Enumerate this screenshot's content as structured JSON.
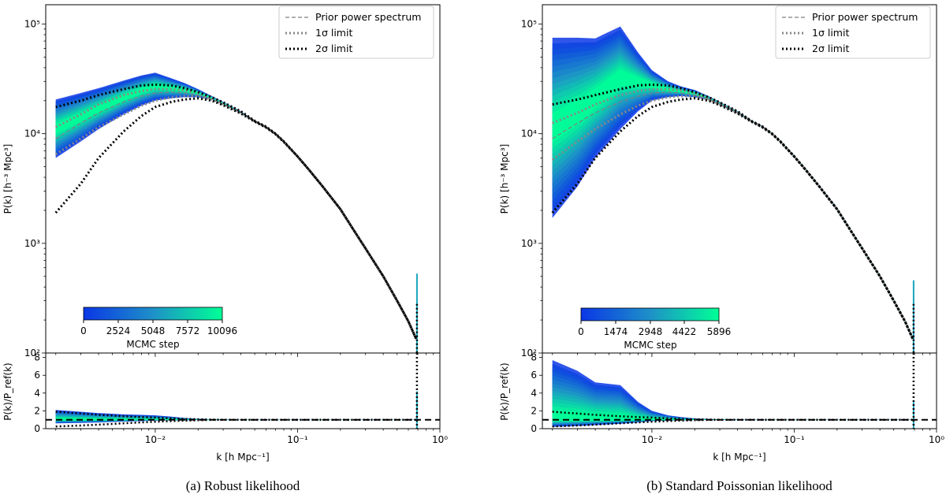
{
  "chart_data": [
    {
      "type": "line",
      "panel": "left",
      "caption": "(a) Robust likelihood",
      "xscale": "log",
      "yscale": "log",
      "xlim": [
        0.0017,
        1.0
      ],
      "ylim": [
        100,
        150000
      ],
      "ratio_ylim": [
        0,
        8.5
      ],
      "ylabel": "P(k) [h⁻³ Mpc³]",
      "ratio_ylabel": "P(k)/P_ref(k)",
      "xlabel": "k [h Mpc⁻¹]",
      "y_ticks": [
        {
          "v": 100,
          "label": "10²"
        },
        {
          "v": 1000,
          "label": "10³"
        },
        {
          "v": 10000,
          "label": "10⁴"
        },
        {
          "v": 100000,
          "label": "10⁵"
        }
      ],
      "ratio_ticks": [
        {
          "v": 0,
          "label": "0"
        },
        {
          "v": 2,
          "label": "2"
        },
        {
          "v": 4,
          "label": "4"
        },
        {
          "v": 6,
          "label": "6"
        },
        {
          "v": 8,
          "label": "8"
        }
      ],
      "x_ticks": [
        {
          "v": 0.01,
          "label": "10⁻²"
        },
        {
          "v": 0.1,
          "label": "10⁻¹"
        },
        {
          "v": 1,
          "label": "10⁰"
        }
      ],
      "legend": {
        "position": "top-right",
        "entries": [
          "Prior power spectrum",
          "1σ limit",
          "2σ limit"
        ]
      },
      "colorbar": {
        "label": "MCMC step",
        "ticks": [
          "0",
          "2524",
          "5048",
          "7572",
          "10096"
        ],
        "position": "bottom-left"
      },
      "k": [
        0.002,
        0.003,
        0.004,
        0.006,
        0.008,
        0.01,
        0.013,
        0.016,
        0.02,
        0.025,
        0.03,
        0.04,
        0.05,
        0.06,
        0.07,
        0.08,
        0.1,
        0.12,
        0.15,
        0.2,
        0.25,
        0.3,
        0.4,
        0.5,
        0.6,
        0.68
      ],
      "prior": [
        9000,
        12500,
        15500,
        19500,
        22000,
        23500,
        24000,
        23500,
        22500,
        20500,
        18500,
        15500,
        13000,
        11500,
        10000,
        8500,
        6200,
        4700,
        3300,
        2050,
        1300,
        900,
        500,
        300,
        195,
        135
      ],
      "sigma1_low": [
        6500,
        9000,
        11500,
        15000,
        18000,
        20000,
        21500,
        22000,
        22000,
        20500,
        18500,
        15500,
        13000,
        11500,
        10000,
        8500,
        6200,
        4700,
        3300,
        2050,
        1300,
        900,
        500,
        300,
        195,
        135
      ],
      "sigma1_high": [
        11500,
        15000,
        18500,
        22500,
        24500,
        25500,
        25500,
        24800,
        23500,
        21000,
        19000,
        15800,
        13000,
        11500,
        10000,
        8500,
        6200,
        4700,
        3300,
        2050,
        1300,
        900,
        500,
        300,
        195,
        135
      ],
      "sigma2_low": [
        1900,
        3500,
        6000,
        10500,
        14500,
        17500,
        19500,
        20500,
        21000,
        20000,
        18200,
        15300,
        12900,
        11400,
        9900,
        8400,
        6200,
        4700,
        3300,
        2050,
        1300,
        900,
        500,
        300,
        195,
        135
      ],
      "sigma2_high": [
        17500,
        20000,
        22500,
        25500,
        27500,
        28000,
        27500,
        26000,
        24000,
        21500,
        19300,
        16000,
        13100,
        11600,
        10000,
        8500,
        6200,
        4700,
        3300,
        2050,
        1300,
        900,
        500,
        300,
        195,
        135
      ],
      "band_low": [
        6000,
        8500,
        11000,
        15000,
        18000,
        20000,
        21000,
        21500,
        21500,
        20500,
        18500,
        15500,
        13000,
        11500,
        10000,
        8500,
        6200,
        4700,
        3300,
        2050,
        1300,
        900,
        500,
        300,
        195,
        135
      ],
      "band_high": [
        20500,
        23500,
        26000,
        30500,
        34000,
        36000,
        32000,
        29000,
        25500,
        22000,
        19500,
        16000,
        13200,
        11700,
        10100,
        8600,
        6300,
        4800,
        3350,
        2100,
        1330,
        920,
        510,
        305,
        200,
        140
      ],
      "ratio_band_low": [
        0.6,
        0.65,
        0.7,
        0.8,
        0.85,
        0.9,
        0.93,
        0.95,
        0.97,
        0.98,
        0.99,
        1,
        1,
        1,
        1,
        1,
        1,
        1,
        1,
        1,
        1,
        1,
        1,
        1,
        1,
        1
      ],
      "ratio_band_high": [
        2.1,
        1.9,
        1.75,
        1.6,
        1.55,
        1.5,
        1.35,
        1.2,
        1.1,
        1.05,
        1.03,
        1.02,
        1.02,
        1.02,
        1.02,
        1.02,
        1.02,
        1.02,
        1.02,
        1.02,
        1.02,
        1.02,
        1.02,
        1.02,
        1.02,
        1.02
      ],
      "ratio_sigma2_low": [
        0.25,
        0.35,
        0.45,
        0.6,
        0.7,
        0.78,
        0.85,
        0.9,
        0.95,
        0.98,
        1,
        1,
        1,
        1,
        1,
        1,
        1,
        1,
        1,
        1,
        1,
        1,
        1,
        1,
        1,
        1
      ],
      "ratio_sigma2_high": [
        1.9,
        1.7,
        1.55,
        1.4,
        1.3,
        1.25,
        1.15,
        1.1,
        1.05,
        1.02,
        1,
        1,
        1,
        1,
        1,
        1,
        1,
        1,
        1,
        1,
        1,
        1,
        1,
        1,
        1,
        1
      ],
      "spike_k": 0.69,
      "spike_high": 530,
      "ratio_spike_high": 4.2
    },
    {
      "type": "line",
      "panel": "right",
      "caption": "(b) Standard Poissonian likelihood",
      "xscale": "log",
      "yscale": "log",
      "xlim": [
        0.0017,
        1.0
      ],
      "ylim": [
        100,
        150000
      ],
      "ratio_ylim": [
        0,
        8.5
      ],
      "ylabel": "P(k) [h⁻³ Mpc³]",
      "ratio_ylabel": "P(k)/P_ref(k)",
      "xlabel": "k [h Mpc⁻¹]",
      "y_ticks": [
        {
          "v": 100,
          "label": "10²"
        },
        {
          "v": 1000,
          "label": "10³"
        },
        {
          "v": 10000,
          "label": "10⁴"
        },
        {
          "v": 100000,
          "label": "10⁵"
        }
      ],
      "ratio_ticks": [
        {
          "v": 0,
          "label": "0"
        },
        {
          "v": 2,
          "label": "2"
        },
        {
          "v": 4,
          "label": "4"
        },
        {
          "v": 6,
          "label": "6"
        },
        {
          "v": 8,
          "label": "8"
        }
      ],
      "x_ticks": [
        {
          "v": 0.01,
          "label": "10⁻²"
        },
        {
          "v": 0.1,
          "label": "10⁻¹"
        },
        {
          "v": 1,
          "label": "10⁰"
        }
      ],
      "legend": {
        "position": "top-right",
        "entries": [
          "Prior power spectrum",
          "1σ limit",
          "2σ limit"
        ]
      },
      "colorbar": {
        "label": "MCMC step",
        "ticks": [
          "0",
          "1474",
          "2948",
          "4422",
          "5896"
        ],
        "position": "bottom-left"
      },
      "k": [
        0.002,
        0.003,
        0.004,
        0.006,
        0.008,
        0.01,
        0.013,
        0.016,
        0.02,
        0.025,
        0.03,
        0.04,
        0.05,
        0.06,
        0.07,
        0.08,
        0.1,
        0.12,
        0.15,
        0.2,
        0.25,
        0.3,
        0.4,
        0.5,
        0.6,
        0.68
      ],
      "prior": [
        9000,
        12500,
        15500,
        19500,
        22000,
        23500,
        24000,
        23500,
        22500,
        20500,
        18500,
        15500,
        13000,
        11500,
        10000,
        8500,
        6200,
        4700,
        3300,
        2050,
        1300,
        900,
        500,
        300,
        195,
        135
      ],
      "sigma1_low": [
        5800,
        8500,
        11000,
        15000,
        18000,
        20000,
        21500,
        22000,
        22000,
        20500,
        18500,
        15500,
        13000,
        11500,
        10000,
        8500,
        6200,
        4700,
        3300,
        2050,
        1300,
        900,
        500,
        300,
        195,
        135
      ],
      "sigma1_high": [
        12500,
        15500,
        18500,
        22500,
        24500,
        25500,
        25500,
        24800,
        23500,
        21000,
        19000,
        15800,
        13000,
        11500,
        10000,
        8500,
        6200,
        4700,
        3300,
        2050,
        1300,
        900,
        500,
        300,
        195,
        135
      ],
      "sigma2_low": [
        1900,
        3500,
        6000,
        10500,
        14500,
        17500,
        19500,
        20500,
        21000,
        20000,
        18200,
        15300,
        12900,
        11400,
        9900,
        8400,
        6200,
        4700,
        3300,
        2050,
        1300,
        900,
        500,
        300,
        195,
        135
      ],
      "sigma2_high": [
        18500,
        20500,
        22500,
        25500,
        27500,
        28000,
        27500,
        26000,
        24000,
        21500,
        19300,
        16000,
        13100,
        11600,
        10000,
        8500,
        6200,
        4700,
        3300,
        2050,
        1300,
        900,
        500,
        300,
        195,
        135
      ],
      "band_low": [
        1700,
        3300,
        6000,
        11000,
        16000,
        20000,
        21500,
        22000,
        21500,
        20500,
        18500,
        15500,
        13000,
        11500,
        10000,
        8500,
        6200,
        4700,
        3300,
        2050,
        1300,
        900,
        500,
        300,
        195,
        135
      ],
      "band_high": [
        75000,
        75000,
        74000,
        95000,
        55000,
        38000,
        30000,
        27000,
        25000,
        22000,
        19500,
        16000,
        13200,
        11700,
        10100,
        8600,
        6300,
        4800,
        3350,
        2100,
        1330,
        920,
        510,
        305,
        200,
        140
      ],
      "ratio_band_low": [
        0.2,
        0.3,
        0.4,
        0.55,
        0.7,
        0.85,
        0.9,
        0.95,
        0.97,
        0.98,
        0.99,
        1,
        1,
        1,
        1,
        1,
        1,
        1,
        1,
        1,
        1,
        1,
        1,
        1,
        1,
        1
      ],
      "ratio_band_high": [
        7.7,
        6.5,
        5.2,
        4.9,
        3.0,
        2.0,
        1.5,
        1.3,
        1.15,
        1.08,
        1.05,
        1.03,
        1.02,
        1.02,
        1.02,
        1.02,
        1.02,
        1.02,
        1.02,
        1.02,
        1.02,
        1.02,
        1.02,
        1.02,
        1.02,
        1.02
      ],
      "ratio_sigma2_low": [
        0.25,
        0.35,
        0.45,
        0.6,
        0.7,
        0.78,
        0.85,
        0.9,
        0.95,
        0.98,
        1,
        1,
        1,
        1,
        1,
        1,
        1,
        1,
        1,
        1,
        1,
        1,
        1,
        1,
        1,
        1
      ],
      "ratio_sigma2_high": [
        1.9,
        1.7,
        1.55,
        1.4,
        1.3,
        1.25,
        1.15,
        1.1,
        1.05,
        1.02,
        1,
        1,
        1,
        1,
        1,
        1,
        1,
        1,
        1,
        1,
        1,
        1,
        1,
        1,
        1,
        1
      ],
      "spike_k": 0.69,
      "spike_high": 460,
      "ratio_spike_high": 3.0
    }
  ],
  "colors": {
    "band_start": "#0a37e6",
    "band_mid": "#1e90c8",
    "band_end": "#00ff96",
    "prior": "#7f7f7f",
    "sigma1": "#888888",
    "sigma2": "#000000"
  }
}
